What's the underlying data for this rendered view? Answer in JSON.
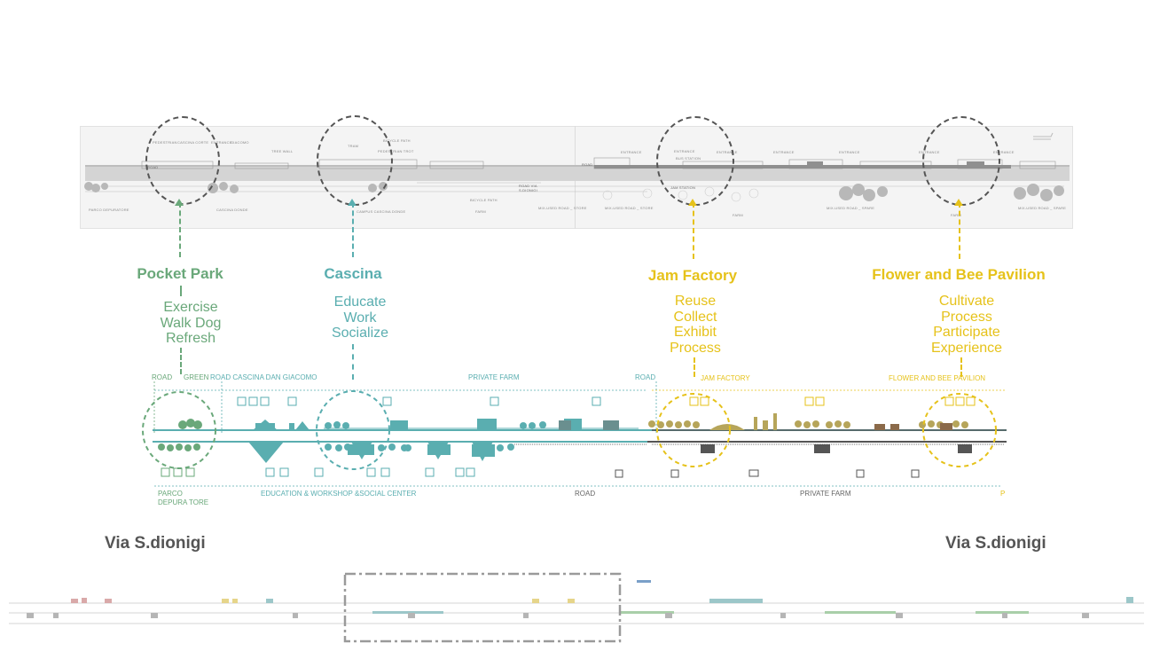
{
  "colors": {
    "green": "#6aa87a",
    "teal": "#5aaeb0",
    "yellow": "#e6c21a",
    "gray": "#666666",
    "dark": "#444444"
  },
  "plan": {
    "labels_top": [
      "PEDESTRIAN",
      "CASCINA CORTE",
      "ENTRANCE",
      "GIACOMO",
      "TREE WALL",
      "TRAM",
      "BICYCLE PATH",
      "PEDESTRIAN TROT",
      "ENTRANCE",
      "BUS STATION",
      "ENTRANCE",
      "ENTRANCE",
      "ENTRANCE",
      "ENTRANCE",
      "ENTRANCE",
      "ENTRANCE"
    ],
    "labels_bottom": [
      "PARCO DEPURATORE",
      "CASCINA DONDE",
      "CAMPUS CASCINA DONDE",
      "BICYCLE PATH",
      "FARM",
      "MIX-USED ROAD _ STORE",
      "MIX-USED ROAD _ STORE",
      "FARM",
      "MIX-USED ROAD _ SPARE",
      "FARM",
      "MIX-USED ROAD _ SPARE"
    ],
    "road_labels": [
      "ROAD",
      "ROAD VIA S.DIONIGI",
      "ROAD",
      "JAM STATION"
    ]
  },
  "nodes": [
    {
      "id": "pocket-park",
      "title": "Pocket Park",
      "activities": [
        "Exercise",
        "Walk Dog",
        "Refresh"
      ],
      "color_key": "green"
    },
    {
      "id": "cascina",
      "title": "Cascina",
      "activities": [
        "Educate",
        "Work",
        "Socialize"
      ],
      "color_key": "teal"
    },
    {
      "id": "jam-factory",
      "title": "Jam Factory",
      "activities": [
        "Reuse",
        "Collect",
        "Exhibit",
        "Process"
      ],
      "color_key": "yellow"
    },
    {
      "id": "flower-bee",
      "title": "Flower and Bee Pavilion",
      "activities": [
        "Cultivate",
        "Process",
        "Participate",
        "Experience"
      ],
      "color_key": "yellow"
    }
  ],
  "section_labels_top": {
    "road1": "ROAD",
    "green": "GREEN",
    "road_cascina": "ROAD CASCINA DAN GIACOMO",
    "private_farm": "PRIVATE FARM",
    "road2": "ROAD",
    "jam_factory": "JAM FACTORY",
    "flower_bee": "FLOWER AND BEE PAVILION"
  },
  "section_labels_bottom": {
    "parco": "PARCO DEPURA TORE",
    "education": "EDUCATION & WORKSHOP &SOCIAL CENTER",
    "road": "ROAD",
    "private_farm": "PRIVATE FARM",
    "p": "P"
  },
  "streets": {
    "left": "Via S.dionigi",
    "right": "Via S.dionigi"
  }
}
